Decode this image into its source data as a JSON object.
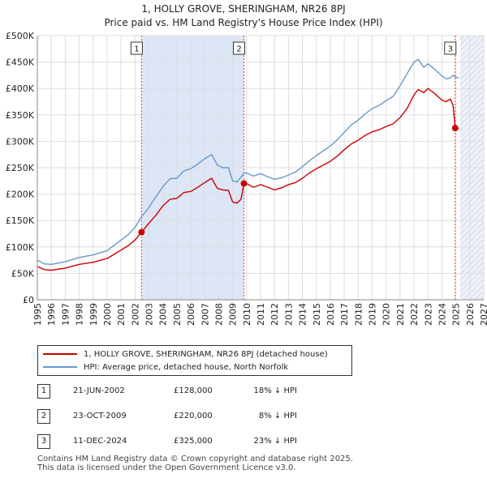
{
  "title_line1": "1, HOLLY GROVE, SHERINGHAM, NR26 8PJ",
  "title_line2": "Price paid vs. HM Land Registry's House Price Index (HPI)",
  "colors": {
    "property": "#cc0000",
    "hpi": "#6699cc",
    "shade": "#dde6f7",
    "grid": "#dddddd"
  },
  "chart_data": {
    "type": "line",
    "title": "Price paid vs. HM Land Registry's House Price Index (HPI)",
    "xlabel": "",
    "ylabel": "",
    "xlim": [
      1995,
      2027
    ],
    "ylim": [
      0,
      500000
    ],
    "yticks": [
      0,
      50000,
      100000,
      150000,
      200000,
      250000,
      300000,
      350000,
      400000,
      450000,
      500000
    ],
    "ytick_labels": [
      "£0",
      "£50K",
      "£100K",
      "£150K",
      "£200K",
      "£250K",
      "£300K",
      "£350K",
      "£400K",
      "£450K",
      "£500K"
    ],
    "xticks": [
      "1995",
      "1996",
      "1997",
      "1998",
      "1999",
      "2000",
      "2001",
      "2002",
      "2003",
      "2004",
      "2005",
      "2006",
      "2007",
      "2008",
      "2009",
      "2010",
      "2011",
      "2012",
      "2013",
      "2014",
      "2015",
      "2016",
      "2017",
      "2018",
      "2019",
      "2020",
      "2021",
      "2022",
      "2023",
      "2024",
      "2025",
      "2026",
      "2027"
    ],
    "shaded_span": [
      2002.47,
      2009.81
    ],
    "future_hatch_from": 2025.3,
    "series": [
      {
        "name": "1, HOLLY GROVE, SHERINGHAM, NR26 8PJ (detached house)",
        "x": [
          1995.0,
          1995.5,
          1996,
          1997,
          1998,
          1999,
          2000,
          2000.5,
          2001,
          2001.5,
          2002,
          2002.47,
          2003,
          2003.5,
          2004,
          2004.5,
          2005,
          2005.5,
          2006,
          2006.5,
          2007,
          2007.5,
          2007.9,
          2008.3,
          2008.7,
          2009,
          2009.3,
          2009.6,
          2009.81,
          2010,
          2010.5,
          2011,
          2011.5,
          2012,
          2012.5,
          2013,
          2013.5,
          2014,
          2014.5,
          2015,
          2015.5,
          2016,
          2016.5,
          2017,
          2017.5,
          2018,
          2018.5,
          2019,
          2019.5,
          2020,
          2020.5,
          2021,
          2021.5,
          2022,
          2022.3,
          2022.7,
          2023,
          2023.5,
          2024,
          2024.3,
          2024.6,
          2024.8,
          2024.95,
          2025.2
        ],
        "values": [
          63000,
          57000,
          56000,
          60000,
          67000,
          71000,
          78000,
          86000,
          94000,
          102000,
          113000,
          128000,
          145000,
          160000,
          178000,
          190000,
          192000,
          203000,
          205000,
          213000,
          222000,
          230000,
          211000,
          208000,
          207000,
          185000,
          183000,
          190000,
          220000,
          220000,
          213000,
          218000,
          213000,
          208000,
          212000,
          218000,
          222000,
          230000,
          240000,
          248000,
          255000,
          262000,
          272000,
          284000,
          295000,
          302000,
          311000,
          318000,
          322000,
          328000,
          333000,
          345000,
          362000,
          388000,
          398000,
          392000,
          400000,
          390000,
          378000,
          375000,
          380000,
          368000,
          325000,
          324000
        ]
      },
      {
        "name": "HPI: Average price, detached house, North Norfolk",
        "x": [
          1995.0,
          1995.5,
          1996,
          1997,
          1998,
          1999,
          2000,
          2000.5,
          2001,
          2001.5,
          2002,
          2002.47,
          2003,
          2003.5,
          2004,
          2004.5,
          2005,
          2005.5,
          2006,
          2006.5,
          2007,
          2007.5,
          2007.9,
          2008.3,
          2008.7,
          2009,
          2009.3,
          2009.6,
          2009.81,
          2010,
          2010.5,
          2011,
          2011.5,
          2012,
          2012.5,
          2013,
          2013.5,
          2014,
          2014.5,
          2015,
          2015.5,
          2016,
          2016.5,
          2017,
          2017.5,
          2018,
          2018.5,
          2019,
          2019.5,
          2020,
          2020.5,
          2021,
          2021.5,
          2022,
          2022.3,
          2022.7,
          2023,
          2023.5,
          2024,
          2024.3,
          2024.6,
          2024.8,
          2024.95,
          2025.2
        ],
        "values": [
          75000,
          68000,
          67000,
          72000,
          80000,
          85000,
          93000,
          103000,
          113000,
          123000,
          137000,
          157000,
          175000,
          195000,
          214000,
          229000,
          230000,
          244000,
          248000,
          257000,
          267000,
          275000,
          255000,
          250000,
          250000,
          225000,
          223000,
          232000,
          240000,
          240000,
          234000,
          239000,
          233000,
          228000,
          231000,
          236000,
          242000,
          252000,
          263000,
          273000,
          282000,
          291000,
          303000,
          317000,
          331000,
          340000,
          352000,
          362000,
          368000,
          377000,
          385000,
          405000,
          428000,
          450000,
          455000,
          440000,
          447000,
          436000,
          424000,
          418000,
          420000,
          425000,
          422000,
          420000
        ]
      }
    ],
    "markers": [
      {
        "label": "1",
        "x": 2002.47,
        "value": 128000
      },
      {
        "label": "2",
        "x": 2009.81,
        "value": 220000
      },
      {
        "label": "3",
        "x": 2024.95,
        "value": 325000
      }
    ]
  },
  "legend": {
    "property_label": "1, HOLLY GROVE, SHERINGHAM, NR26 8PJ (detached house)",
    "hpi_label": "HPI: Average price, detached house, North Norfolk"
  },
  "transactions": [
    {
      "num": "1",
      "date": "21-JUN-2002",
      "price": "£128,000",
      "hpi": "18% ↓ HPI"
    },
    {
      "num": "2",
      "date": "23-OCT-2009",
      "price": "£220,000",
      "hpi": "8% ↓ HPI"
    },
    {
      "num": "3",
      "date": "11-DEC-2024",
      "price": "£325,000",
      "hpi": "23% ↓ HPI"
    }
  ],
  "footer": {
    "line1": "Contains HM Land Registry data © Crown copyright and database right 2025.",
    "line2": "This data is licensed under the Open Government Licence v3.0."
  }
}
